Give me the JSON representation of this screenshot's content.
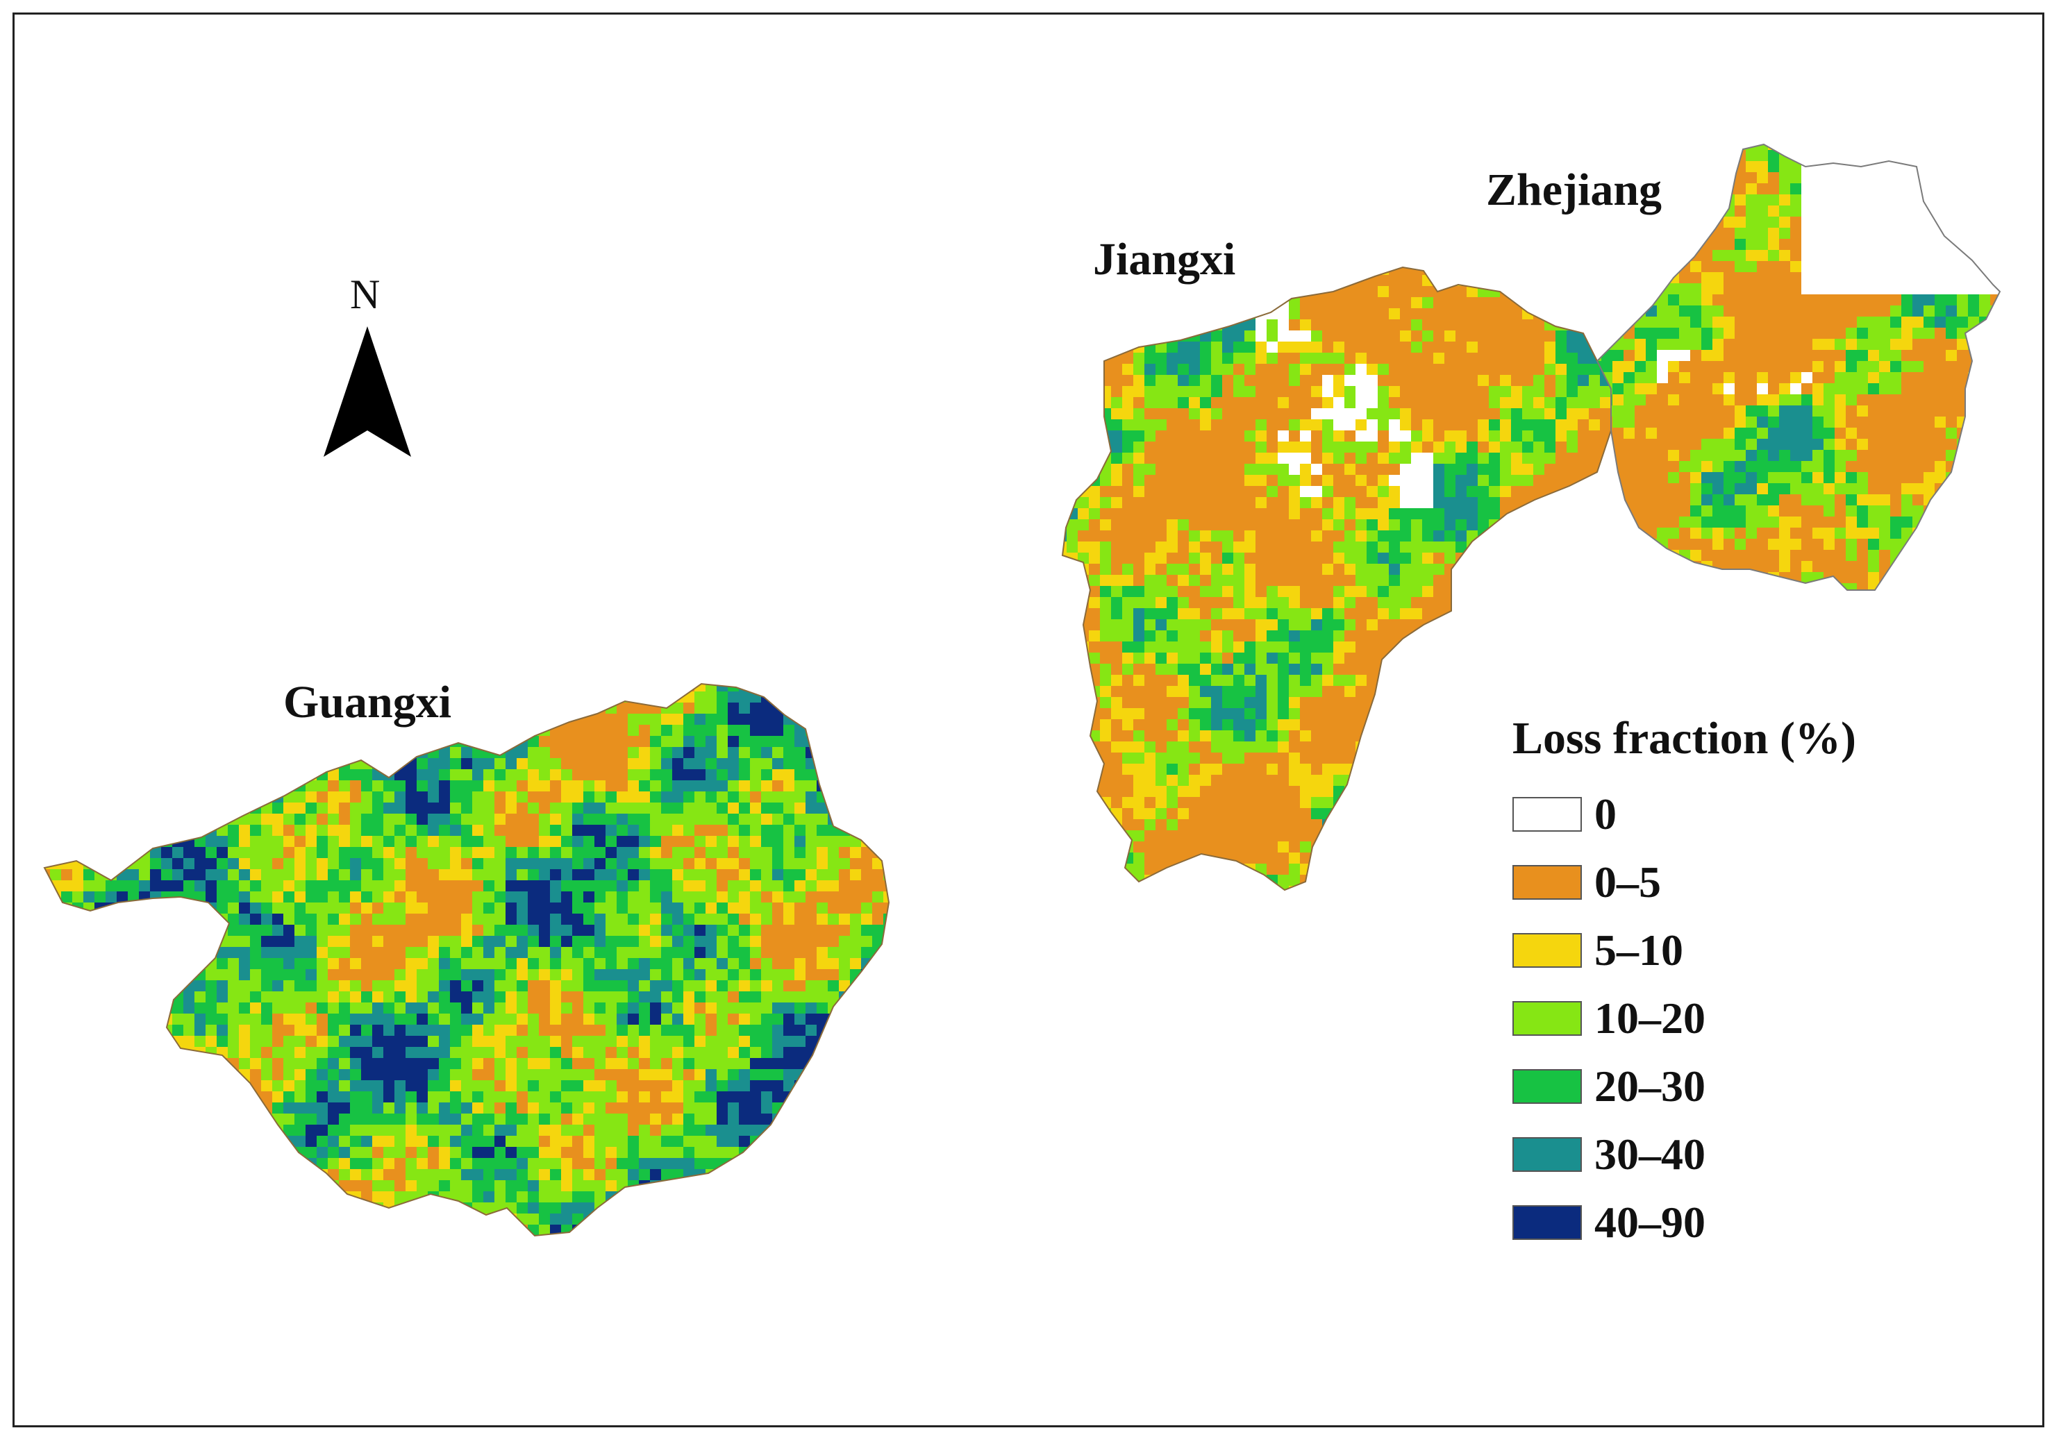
{
  "map": {
    "regions": [
      {
        "key": "guangxi",
        "label": "Guangxi"
      },
      {
        "key": "jiangxi",
        "label": "Jiangxi"
      },
      {
        "key": "zhejiang",
        "label": "Zhejiang"
      }
    ],
    "north_arrow": {
      "letter": "N",
      "icon": "north-arrow-icon"
    },
    "legend": {
      "title": "Loss fraction (%)",
      "classes": [
        {
          "label": "0",
          "color": "#ffffff"
        },
        {
          "label": "0–5",
          "color": "#e8901e"
        },
        {
          "label": "5–10",
          "color": "#f5d60e"
        },
        {
          "label": "10–20",
          "color": "#86e614"
        },
        {
          "label": "20–30",
          "color": "#17c243"
        },
        {
          "label": "30–40",
          "color": "#1a8f8f"
        },
        {
          "label": "40–90",
          "color": "#0b2b7e"
        }
      ]
    },
    "border_color": "#8a6a3a"
  }
}
